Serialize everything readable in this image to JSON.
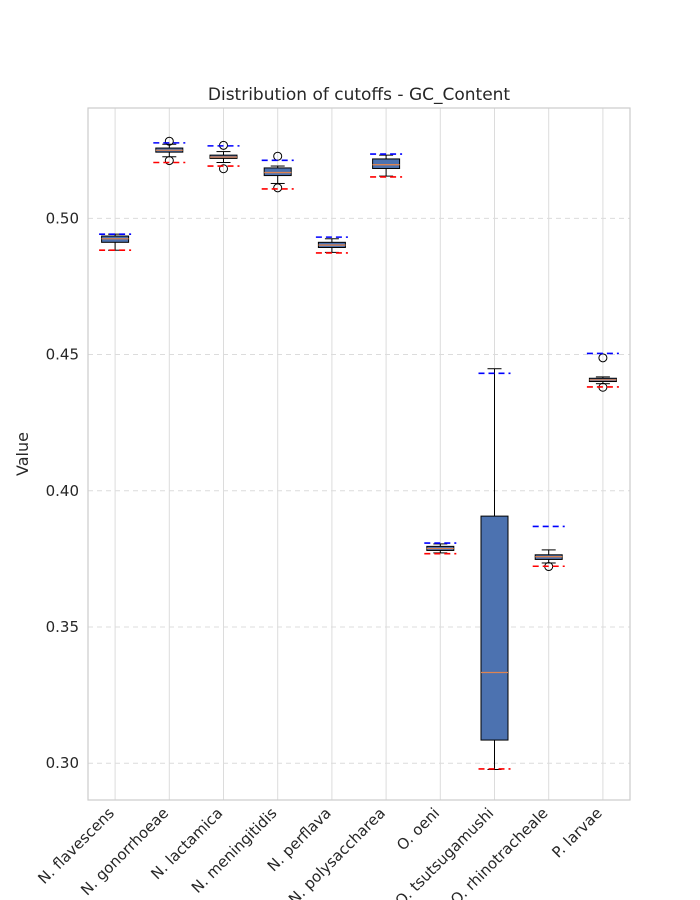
{
  "chart_data": {
    "type": "box",
    "title": "Distribution of cutoffs - GC_Content",
    "ylabel": "Value",
    "xlabel": "",
    "ylim": [
      0.2865,
      0.5405
    ],
    "yticks": [
      0.3,
      0.35,
      0.4,
      0.45,
      0.5
    ],
    "ytick_labels": [
      "0.30",
      "0.35",
      "0.40",
      "0.45",
      "0.50"
    ],
    "grid": true,
    "colors": {
      "box_fill": "#4c72b0",
      "median": "#dd8452",
      "upper_cutoff": "#0000ff",
      "lower_cutoff": "#ff0000",
      "outline": "#000000",
      "grid": "#dcdcdc",
      "text": "#262626"
    },
    "categories": [
      "N. flavescens",
      "N. gonorrhoeae",
      "N. lactamica",
      "N. meningitidis",
      "N. perflava",
      "N. polysaccharea",
      "O. oeni",
      "O. tsutsugamushi",
      "O. rhinotracheale",
      "P. larvae"
    ],
    "boxes": [
      {
        "q1": 0.4912,
        "median": 0.4925,
        "q3": 0.4935,
        "whisker_low": 0.4883,
        "whisker_high": 0.4942,
        "outliers": [],
        "upper_cutoff": 0.4942,
        "lower_cutoff": 0.4883
      },
      {
        "q1": 0.5243,
        "median": 0.525,
        "q3": 0.5258,
        "whisker_low": 0.5226,
        "whisker_high": 0.5272,
        "outliers": [
          0.5283,
          0.5212
        ],
        "upper_cutoff": 0.5277,
        "lower_cutoff": 0.5205
      },
      {
        "q1": 0.522,
        "median": 0.5225,
        "q3": 0.5232,
        "whisker_low": 0.5205,
        "whisker_high": 0.5245,
        "outliers": [
          0.5268,
          0.5182
        ],
        "upper_cutoff": 0.5266,
        "lower_cutoff": 0.5192
      },
      {
        "q1": 0.5157,
        "median": 0.5168,
        "q3": 0.5185,
        "whisker_low": 0.5128,
        "whisker_high": 0.5192,
        "outliers": [
          0.5228,
          0.5112
        ],
        "upper_cutoff": 0.5213,
        "lower_cutoff": 0.5108
      },
      {
        "q1": 0.4893,
        "median": 0.4902,
        "q3": 0.4912,
        "whisker_low": 0.4875,
        "whisker_high": 0.4925,
        "outliers": [],
        "upper_cutoff": 0.4931,
        "lower_cutoff": 0.4873
      },
      {
        "q1": 0.5183,
        "median": 0.5197,
        "q3": 0.5218,
        "whisker_low": 0.5155,
        "whisker_high": 0.5232,
        "outliers": [],
        "upper_cutoff": 0.5236,
        "lower_cutoff": 0.5152
      },
      {
        "q1": 0.3781,
        "median": 0.3788,
        "q3": 0.3796,
        "whisker_low": 0.3772,
        "whisker_high": 0.3805,
        "outliers": [],
        "upper_cutoff": 0.3808,
        "lower_cutoff": 0.3769
      },
      {
        "q1": 0.3085,
        "median": 0.3333,
        "q3": 0.3907,
        "whisker_low": 0.2977,
        "whisker_high": 0.4448,
        "outliers": [],
        "upper_cutoff": 0.4431,
        "lower_cutoff": 0.2979
      },
      {
        "q1": 0.3748,
        "median": 0.3758,
        "q3": 0.3765,
        "whisker_low": 0.3735,
        "whisker_high": 0.3783,
        "outliers": [
          0.3722
        ],
        "upper_cutoff": 0.3869,
        "lower_cutoff": 0.3723
      },
      {
        "q1": 0.4401,
        "median": 0.4407,
        "q3": 0.4413,
        "whisker_low": 0.4393,
        "whisker_high": 0.4418,
        "outliers": [
          0.4488,
          0.438
        ],
        "upper_cutoff": 0.4504,
        "lower_cutoff": 0.4381
      }
    ]
  }
}
